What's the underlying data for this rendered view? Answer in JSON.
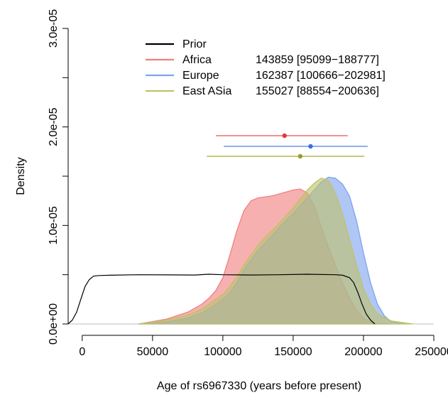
{
  "chart_data": {
    "type": "area",
    "xlabel": "Age of rs6967330 (years before present)",
    "ylabel": "Density",
    "xlim": [
      -10000,
      250000
    ],
    "ylim": [
      0,
      3e-05
    ],
    "x_ticks": [
      0,
      50000,
      100000,
      150000,
      200000,
      250000
    ],
    "x_tick_labels": [
      "0",
      "50000",
      "100000",
      "150000",
      "200000",
      "250000"
    ],
    "y_ticks": [
      0,
      5e-06,
      1e-05,
      1.5e-05,
      2e-05,
      2.5e-05,
      3e-05
    ],
    "y_tick_labels": [
      "0.0e+00",
      "",
      "1.0e-05",
      "",
      "2.0e-05",
      "",
      "3.0e-05"
    ],
    "legend_position": "top-center",
    "series": [
      {
        "name": "Prior",
        "label": "",
        "color": "#000000",
        "kind": "line",
        "x": [
          -10000,
          -7000,
          -4000,
          -1000,
          2000,
          5000,
          8000,
          12000,
          20000,
          40000,
          60000,
          80000,
          90000,
          100000,
          110000,
          120000,
          140000,
          160000,
          180000,
          185000,
          190000,
          193000,
          196000,
          199000,
          202000,
          205000,
          208000
        ],
        "y": [
          0.0,
          4e-07,
          1.2e-06,
          2.5e-06,
          3.8e-06,
          4.5e-06,
          4.85e-06,
          4.92e-06,
          4.95e-06,
          5e-06,
          4.98e-06,
          4.97e-06,
          5.05e-06,
          5e-06,
          4.98e-06,
          4.97e-06,
          5e-06,
          5.05e-06,
          5e-06,
          4.95e-06,
          4.7e-06,
          4.2e-06,
          3.2e-06,
          2e-06,
          1e-06,
          4e-07,
          0.0
        ]
      },
      {
        "name": "Africa",
        "label": "143859 [95099−188777]",
        "color": "#f08080",
        "kind": "area",
        "mean": 143859,
        "ci": [
          95099,
          188777
        ],
        "x": [
          40000,
          60000,
          75000,
          85000,
          90000,
          95000,
          100000,
          105000,
          110000,
          115000,
          120000,
          125000,
          130000,
          135000,
          140000,
          145000,
          150000,
          155000,
          160000,
          165000,
          170000,
          175000,
          180000,
          185000,
          190000,
          195000,
          200000,
          205000,
          210000,
          220000
        ],
        "y": [
          0.0,
          5e-07,
          1.2e-06,
          2e-06,
          2.6e-06,
          3.4e-06,
          4.7e-06,
          7e-06,
          9.5e-06,
          1.15e-05,
          1.25e-05,
          1.28e-05,
          1.29e-05,
          1.3e-05,
          1.32e-05,
          1.34e-05,
          1.36e-05,
          1.37e-05,
          1.33e-05,
          1.2e-05,
          9.8e-06,
          7.8e-06,
          6e-06,
          4.2e-06,
          2.6e-06,
          1.4e-06,
          6e-07,
          2e-07,
          5e-08,
          0.0
        ]
      },
      {
        "name": "Europe",
        "label": "162387 [100666−202981]",
        "color": "#7fa3ee",
        "kind": "area",
        "mean": 162387,
        "ci": [
          100666,
          202981
        ],
        "x": [
          40000,
          60000,
          75000,
          85000,
          95000,
          100000,
          105000,
          110000,
          115000,
          120000,
          125000,
          130000,
          135000,
          140000,
          145000,
          150000,
          155000,
          160000,
          165000,
          170000,
          175000,
          180000,
          185000,
          190000,
          195000,
          200000,
          205000,
          210000,
          215000,
          220000,
          230000
        ],
        "y": [
          0.0,
          2e-07,
          6e-07,
          1.1e-06,
          2e-06,
          2.5e-06,
          3.2e-06,
          4.2e-06,
          5.5e-06,
          6.5e-06,
          7.5e-06,
          8.2e-06,
          9e-06,
          9.8e-06,
          1.05e-05,
          1.12e-05,
          1.2e-05,
          1.28e-05,
          1.36e-05,
          1.44e-05,
          1.49e-05,
          1.48e-05,
          1.42e-05,
          1.3e-05,
          1.05e-05,
          7.2e-06,
          4.2e-06,
          2e-06,
          8e-07,
          2e-07,
          0.0
        ]
      },
      {
        "name": "East ASia",
        "label": "155027 [88554−200636]",
        "color": "#bfc26a",
        "kind": "area",
        "mean": 155027,
        "ci": [
          88554,
          200636
        ],
        "x": [
          40000,
          60000,
          75000,
          85000,
          95000,
          100000,
          105000,
          110000,
          115000,
          120000,
          125000,
          130000,
          135000,
          140000,
          145000,
          150000,
          155000,
          160000,
          165000,
          170000,
          175000,
          180000,
          185000,
          190000,
          195000,
          200000,
          205000,
          210000,
          220000,
          235000
        ],
        "y": [
          0.0,
          4e-07,
          9e-07,
          1.5e-06,
          2.5e-06,
          3e-06,
          3.8e-06,
          4.8e-06,
          6e-06,
          7e-06,
          8e-06,
          8.8e-06,
          9.5e-06,
          1.02e-05,
          1.1e-05,
          1.18e-05,
          1.27e-05,
          1.36e-05,
          1.43e-05,
          1.48e-05,
          1.46e-05,
          1.33e-05,
          1.12e-05,
          8.6e-06,
          6e-06,
          3.6e-06,
          2e-06,
          1e-06,
          3e-07,
          0.0
        ]
      }
    ]
  }
}
